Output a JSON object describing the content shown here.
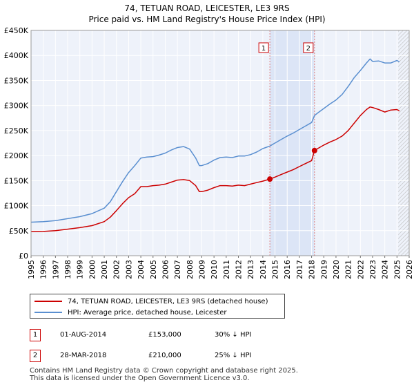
{
  "chart_data": {
    "type": "line",
    "title": "74, TETUAN ROAD, LEICESTER, LE3 9RS",
    "subtitle": "Price paid vs. HM Land Registry's House Price Index (HPI)",
    "x_ticks": [
      "1995",
      "1996",
      "1997",
      "1998",
      "1999",
      "2000",
      "2001",
      "2002",
      "2003",
      "2004",
      "2005",
      "2006",
      "2007",
      "2008",
      "2009",
      "2010",
      "2011",
      "2012",
      "2013",
      "2014",
      "2015",
      "2016",
      "2017",
      "2018",
      "2019",
      "2020",
      "2021",
      "2022",
      "2023",
      "2024",
      "2025",
      "2026"
    ],
    "y_ticks": [
      "£0",
      "£50K",
      "£100K",
      "£150K",
      "£200K",
      "£250K",
      "£300K",
      "£350K",
      "£400K",
      "£450K"
    ],
    "xlim": [
      1995,
      2026
    ],
    "ylim": [
      0,
      450000
    ],
    "grid": true,
    "shaded_span": [
      2014.58,
      2018.24
    ],
    "forecast_start": 2025.1,
    "series": [
      {
        "name": "74, TETUAN ROAD, LEICESTER, LE3 9RS (detached house)",
        "color": "#cc0000",
        "x": [
          1995.0,
          1996.0,
          1997.0,
          1998.0,
          1999.0,
          2000.0,
          2001.0,
          2001.5,
          2002.0,
          2002.5,
          2003.0,
          2003.5,
          2004.0,
          2004.5,
          2005.0,
          2005.5,
          2006.0,
          2006.5,
          2007.0,
          2007.5,
          2008.0,
          2008.5,
          2008.8,
          2009.0,
          2009.5,
          2010.0,
          2010.5,
          2011.0,
          2011.5,
          2012.0,
          2012.5,
          2013.0,
          2013.5,
          2014.0,
          2014.58,
          2015.0,
          2015.5,
          2016.0,
          2016.5,
          2017.0,
          2017.5,
          2018.0,
          2018.24,
          2018.5,
          2019.0,
          2019.5,
          2020.0,
          2020.5,
          2021.0,
          2021.5,
          2022.0,
          2022.5,
          2022.8,
          2023.0,
          2023.5,
          2024.0,
          2024.5,
          2025.0,
          2025.2
        ],
        "values": [
          48000,
          48500,
          50000,
          53000,
          56000,
          60000,
          68000,
          77000,
          90000,
          104000,
          116000,
          124000,
          138000,
          138000,
          140000,
          141000,
          143000,
          147000,
          151000,
          152000,
          150000,
          140000,
          128000,
          128000,
          131000,
          136000,
          140000,
          140000,
          139000,
          141000,
          140000,
          143000,
          146000,
          149000,
          153000,
          157000,
          162000,
          167000,
          172000,
          178000,
          184000,
          190000,
          210000,
          214000,
          221000,
          227000,
          232000,
          239000,
          250000,
          265000,
          280000,
          292000,
          297000,
          296000,
          292000,
          287000,
          291000,
          292000,
          289000
        ]
      },
      {
        "name": "HPI: Average price, detached house, Leicester",
        "color": "#5a8fd0",
        "x": [
          1995.0,
          1996.0,
          1997.0,
          1998.0,
          1999.0,
          2000.0,
          2001.0,
          2001.5,
          2002.0,
          2002.5,
          2003.0,
          2003.5,
          2004.0,
          2004.5,
          2005.0,
          2005.5,
          2006.0,
          2006.5,
          2007.0,
          2007.5,
          2008.0,
          2008.5,
          2008.8,
          2009.0,
          2009.5,
          2010.0,
          2010.5,
          2011.0,
          2011.5,
          2012.0,
          2012.5,
          2013.0,
          2013.5,
          2014.0,
          2014.58,
          2015.0,
          2015.5,
          2016.0,
          2016.5,
          2017.0,
          2017.5,
          2018.0,
          2018.24,
          2018.5,
          2019.0,
          2019.5,
          2020.0,
          2020.5,
          2021.0,
          2021.5,
          2022.0,
          2022.5,
          2022.8,
          2023.0,
          2023.5,
          2024.0,
          2024.5,
          2025.0,
          2025.2
        ],
        "values": [
          67000,
          68000,
          70000,
          74000,
          78000,
          84000,
          95000,
          108000,
          128000,
          148000,
          166000,
          180000,
          195000,
          197000,
          198000,
          201000,
          205000,
          211000,
          216000,
          218000,
          213000,
          195000,
          180000,
          180000,
          184000,
          191000,
          196000,
          197000,
          196000,
          199000,
          199000,
          202000,
          207000,
          214000,
          219000,
          225000,
          232000,
          239000,
          245000,
          252000,
          259000,
          266000,
          280000,
          285000,
          294000,
          303000,
          311000,
          322000,
          338000,
          356000,
          370000,
          385000,
          393000,
          388000,
          389000,
          385000,
          385000,
          390000,
          387000
        ]
      }
    ],
    "markers": [
      {
        "label": "1",
        "x": 2014.58,
        "y": 153000
      },
      {
        "label": "2",
        "x": 2018.24,
        "y": 210000
      }
    ]
  },
  "legend": {
    "items": [
      {
        "label": "74, TETUAN ROAD, LEICESTER, LE3 9RS (detached house)",
        "color": "#cc0000"
      },
      {
        "label": "HPI: Average price, detached house, Leicester",
        "color": "#5a8fd0"
      }
    ]
  },
  "transactions": [
    {
      "num": "1",
      "date": "01-AUG-2014",
      "price": "£153,000",
      "hpi": "30% ↓ HPI"
    },
    {
      "num": "2",
      "date": "28-MAR-2018",
      "price": "£210,000",
      "hpi": "25% ↓ HPI"
    }
  ],
  "footer": {
    "line1": "Contains HM Land Registry data © Crown copyright and database right 2025.",
    "line2": "This data is licensed under the Open Government Licence v3.0."
  }
}
